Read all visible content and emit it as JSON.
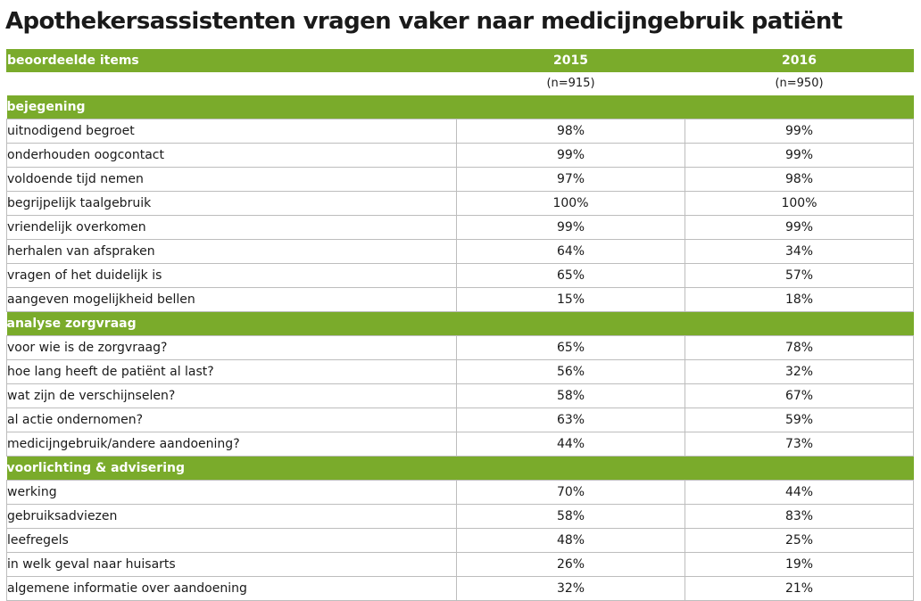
{
  "chart_data": {
    "type": "table",
    "title": "Apothekersassistenten vragen vaker naar medicijngebruik patiënt",
    "columns": [
      "beoordeelde items",
      "2015",
      "2016"
    ],
    "sample_sizes": [
      "(n=915)",
      "(n=950)"
    ],
    "sections": [
      {
        "name": "bejegening",
        "rows": [
          {
            "item": "uitnodigend begroet",
            "v2015": "98%",
            "v2016": "99%"
          },
          {
            "item": "onderhouden oogcontact",
            "v2015": "99%",
            "v2016": "99%"
          },
          {
            "item": "voldoende tijd nemen",
            "v2015": "97%",
            "v2016": "98%"
          },
          {
            "item": "begrijpelijk taalgebruik",
            "v2015": "100%",
            "v2016": "100%"
          },
          {
            "item": "vriendelijk overkomen",
            "v2015": "99%",
            "v2016": "99%"
          },
          {
            "item": "herhalen van afspraken",
            "v2015": "64%",
            "v2016": "34%"
          },
          {
            "item": "vragen of het duidelijk is",
            "v2015": "65%",
            "v2016": "57%"
          },
          {
            "item": "aangeven mogelijkheid bellen",
            "v2015": "15%",
            "v2016": "18%"
          }
        ]
      },
      {
        "name": "analyse zorgvraag",
        "rows": [
          {
            "item": "voor wie is de zorgvraag?",
            "v2015": "65%",
            "v2016": "78%"
          },
          {
            "item": "hoe lang heeft de patiënt al last?",
            "v2015": "56%",
            "v2016": "32%"
          },
          {
            "item": "wat zijn de verschijnselen?",
            "v2015": "58%",
            "v2016": "67%"
          },
          {
            "item": "al actie ondernomen?",
            "v2015": "63%",
            "v2016": "59%"
          },
          {
            "item": "medicijngebruik/andere aandoening?",
            "v2015": "44%",
            "v2016": "73%"
          }
        ]
      },
      {
        "name": "voorlichting & advisering",
        "rows": [
          {
            "item": "werking",
            "v2015": "70%",
            "v2016": "44%"
          },
          {
            "item": "gebruiksadviezen",
            "v2015": "58%",
            "v2016": "83%"
          },
          {
            "item": "leefregels",
            "v2015": "48%",
            "v2016": "25%"
          },
          {
            "item": "in welk geval naar huisarts",
            "v2015": "26%",
            "v2016": "19%"
          },
          {
            "item": "algemene informatie over aandoening",
            "v2015": "32%",
            "v2016": "21%"
          }
        ]
      }
    ]
  },
  "colors": {
    "accent": "#7aab2b",
    "grid": "#bdbdbd",
    "text": "#1a1a1a"
  }
}
